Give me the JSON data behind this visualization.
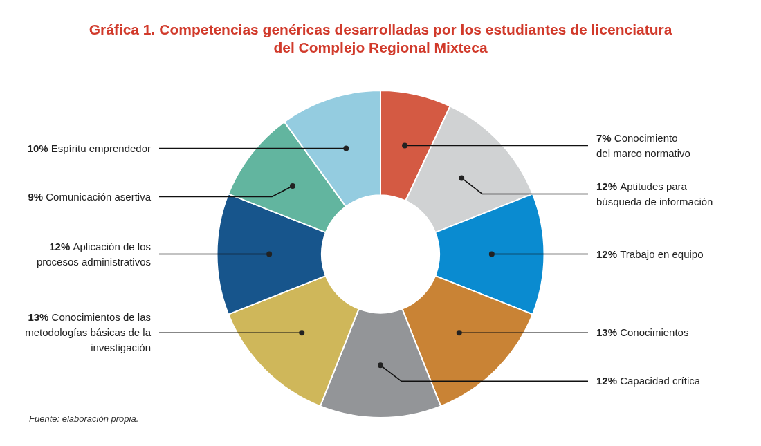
{
  "chart_data": {
    "type": "donut",
    "title": "Gráfica 1. Competencias genéricas desarrolladas por los estudiantes de licenciatura\ndel Complejo Regional Mixteca",
    "categories": [
      "Conocimiento\ndel marco normativo",
      "Aptitudes para\nbúsqueda de información",
      "Trabajo en equipo",
      "Conocimientos",
      "Capacidad crítica",
      "Conocimientos de las\nmetodologías básicas de la\ninvestigación",
      "Aplicación de los\nprocesos administrativos",
      "Comunicación asertiva",
      "Espíritu emprendedor"
    ],
    "values": [
      7,
      12,
      12,
      13,
      12,
      13,
      12,
      9,
      10
    ],
    "value_labels": [
      "7%",
      "12%",
      "12%",
      "13%",
      "12%",
      "13%",
      "12%",
      "9%",
      "10%"
    ],
    "colors": [
      "#d45a43",
      "#d0d2d3",
      "#0a8bd0",
      "#c98335",
      "#939598",
      "#cfb75a",
      "#17558c",
      "#62b59f",
      "#94cce0"
    ],
    "legend": false,
    "annotations": [
      "Fuente: elaboración propia."
    ]
  }
}
